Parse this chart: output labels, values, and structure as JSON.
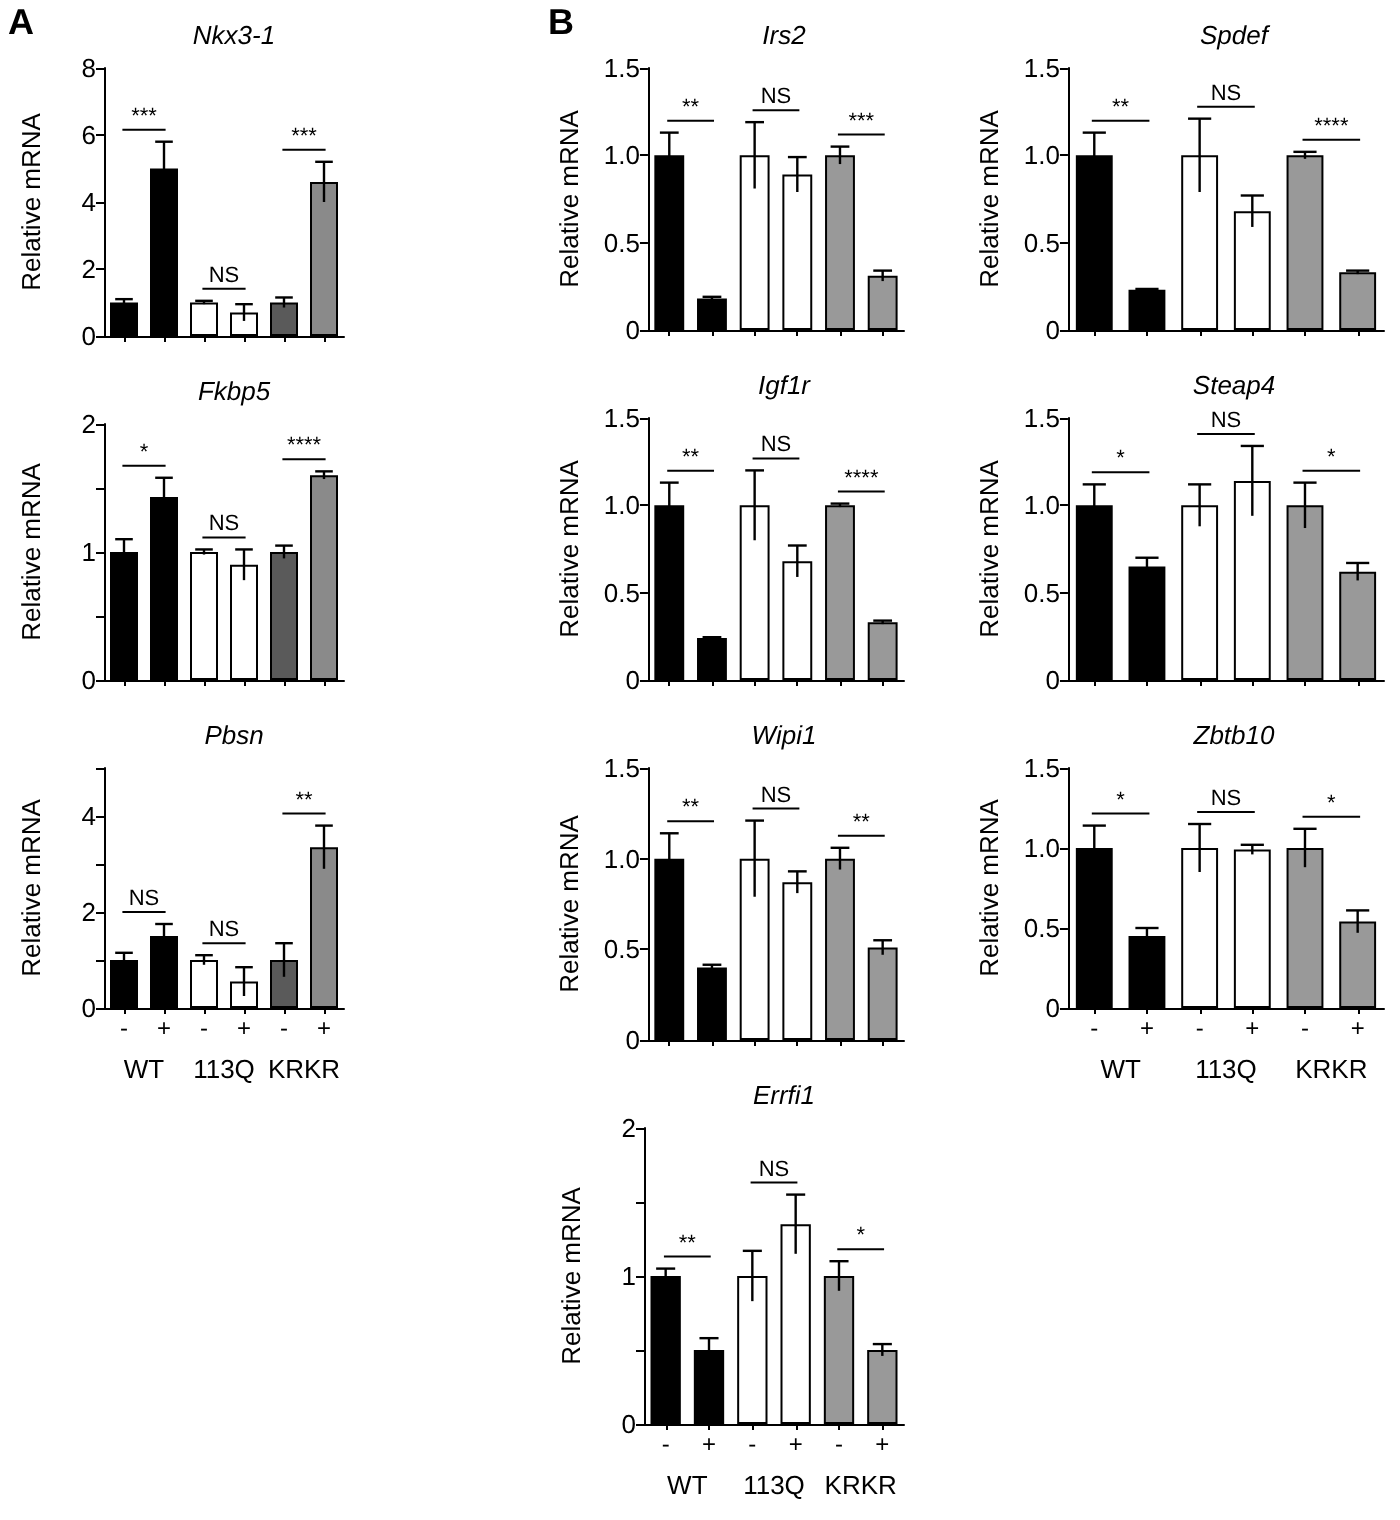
{
  "chart_data": [
    {
      "type": "bar",
      "title": "Nkx3-1",
      "ylabel": "Relative mRNA",
      "categories": [
        null,
        null,
        null
      ],
      "ylim": [
        0,
        8
      ],
      "yticks": [
        0,
        2,
        4,
        6,
        8
      ],
      "tick_labels": "y",
      "legend": false,
      "grid": false,
      "series": [
        {
          "colors": [
            "#000000",
            "#ffffff",
            "#5a5a5a"
          ],
          "values": [
            1.0,
            1.0,
            1.0
          ],
          "errors": [
            0.1,
            0.05,
            0.15
          ]
        },
        {
          "colors": [
            "#000000",
            "#ffffff",
            "#8a8a8a"
          ],
          "values": [
            5.0,
            0.7,
            4.6
          ],
          "errors": [
            0.8,
            0.25,
            0.6
          ]
        }
      ],
      "annotations": [
        "A",
        "***",
        "NS",
        "***"
      ]
    },
    {
      "type": "bar",
      "title": "Fkbp5",
      "ylabel": "Relative mRNA",
      "categories": [
        null,
        null,
        null
      ],
      "ylim": [
        0,
        2
      ],
      "yticks": [
        0,
        {
          "value": 0.5,
          "label": null
        },
        1,
        {
          "value": 1.5,
          "label": null
        },
        2
      ],
      "tick_labels": "y",
      "legend": false,
      "grid": false,
      "series": [
        {
          "colors": [
            "#000000",
            "#ffffff",
            "#5a5a5a"
          ],
          "values": [
            1.0,
            1.0,
            1.0
          ],
          "errors": [
            0.1,
            0.02,
            0.05
          ]
        },
        {
          "colors": [
            "#000000",
            "#ffffff",
            "#8a8a8a"
          ],
          "values": [
            1.43,
            0.9,
            1.6
          ],
          "errors": [
            0.15,
            0.12,
            0.03
          ]
        }
      ],
      "annotations": [
        "*",
        "NS",
        "****"
      ]
    },
    {
      "type": "bar",
      "title": "Pbsn",
      "ylabel": "Relative mRNA",
      "categories": [
        "WT",
        "113Q",
        "KRKR"
      ],
      "ylim": [
        0,
        5
      ],
      "yticks": [
        0,
        {
          "value": 1,
          "label": null
        },
        2,
        {
          "value": 3,
          "label": null
        },
        4,
        {
          "value": 5,
          "label": null
        }
      ],
      "legend": false,
      "grid": false,
      "series": [
        {
          "name": "-",
          "colors": [
            "#000000",
            "#ffffff",
            "#5a5a5a"
          ],
          "values": [
            1.0,
            1.0,
            1.0
          ],
          "errors": [
            0.15,
            0.1,
            0.35
          ]
        },
        {
          "name": "+",
          "colors": [
            "#000000",
            "#ffffff",
            "#8a8a8a"
          ],
          "values": [
            1.5,
            0.55,
            3.35
          ],
          "errors": [
            0.25,
            0.3,
            0.45
          ]
        }
      ],
      "annotations": [
        "NS",
        "NS",
        "**"
      ]
    },
    {
      "type": "bar",
      "title": "Irs2",
      "ylabel": "Relative mRNA",
      "categories": [
        null,
        null,
        null
      ],
      "ylim": [
        0,
        1.5
      ],
      "yticks": [
        0,
        0.5,
        {
          "value": 1,
          "label": "1.0"
        },
        1.5
      ],
      "tick_labels": "y",
      "legend": false,
      "grid": false,
      "series": [
        {
          "colors": [
            "#000000",
            "#ffffff",
            "#999999"
          ],
          "values": [
            1.0,
            1.0,
            1.0
          ],
          "errors": [
            0.13,
            0.19,
            0.05
          ]
        },
        {
          "colors": [
            "#000000",
            "#ffffff",
            "#999999"
          ],
          "values": [
            0.18,
            0.89,
            0.31
          ],
          "errors": [
            0.01,
            0.1,
            0.03
          ]
        }
      ],
      "annotations": [
        "B",
        "**",
        "NS",
        "***"
      ]
    },
    {
      "type": "bar",
      "title": "Spdef",
      "ylabel": "Relative mRNA",
      "categories": [
        null,
        null,
        null
      ],
      "ylim": [
        0,
        1.5
      ],
      "yticks": [
        0,
        0.5,
        {
          "value": 1,
          "label": "1.0"
        },
        1.5
      ],
      "tick_labels": "y",
      "legend": false,
      "grid": false,
      "series": [
        {
          "colors": [
            "#000000",
            "#ffffff",
            "#999999"
          ],
          "values": [
            1.0,
            1.0,
            1.0
          ],
          "errors": [
            0.13,
            0.21,
            0.02
          ]
        },
        {
          "colors": [
            "#000000",
            "#ffffff",
            "#999999"
          ],
          "values": [
            0.23,
            0.68,
            0.33
          ],
          "errors": [
            0.005,
            0.09,
            0.01
          ]
        }
      ],
      "annotations": [
        "**",
        "NS",
        "****"
      ]
    },
    {
      "type": "bar",
      "title": "Igf1r",
      "ylabel": "Relative mRNA",
      "categories": [
        null,
        null,
        null
      ],
      "ylim": [
        0,
        1.5
      ],
      "yticks": [
        0,
        0.5,
        {
          "value": 1,
          "label": "1.0"
        },
        1.5
      ],
      "tick_labels": "y",
      "legend": false,
      "grid": false,
      "series": [
        {
          "colors": [
            "#000000",
            "#ffffff",
            "#999999"
          ],
          "values": [
            1.0,
            1.0,
            1.0
          ],
          "errors": [
            0.13,
            0.2,
            0.01
          ]
        },
        {
          "colors": [
            "#000000",
            "#ffffff",
            "#999999"
          ],
          "values": [
            0.24,
            0.68,
            0.33
          ],
          "errors": [
            0.005,
            0.09,
            0.01
          ]
        }
      ],
      "annotations": [
        "**",
        "NS",
        "****"
      ]
    },
    {
      "type": "bar",
      "title": "Steap4",
      "ylabel": "Relative mRNA",
      "categories": [
        null,
        null,
        null
      ],
      "ylim": [
        0,
        1.5
      ],
      "yticks": [
        0,
        0.5,
        {
          "value": 1,
          "label": "1.0"
        },
        1.5
      ],
      "tick_labels": "y",
      "legend": false,
      "grid": false,
      "series": [
        {
          "colors": [
            "#000000",
            "#ffffff",
            "#999999"
          ],
          "values": [
            1.0,
            1.0,
            1.0
          ],
          "errors": [
            0.12,
            0.12,
            0.13
          ]
        },
        {
          "colors": [
            "#000000",
            "#ffffff",
            "#999999"
          ],
          "values": [
            0.65,
            1.14,
            0.62
          ],
          "errors": [
            0.05,
            0.2,
            0.05
          ]
        }
      ],
      "annotations": [
        "*",
        "NS",
        "*"
      ]
    },
    {
      "type": "bar",
      "title": "Wipi1",
      "ylabel": "Relative mRNA",
      "categories": [
        null,
        null,
        null
      ],
      "ylim": [
        0,
        1.5
      ],
      "yticks": [
        0,
        0.5,
        {
          "value": 1,
          "label": "1.0"
        },
        1.5
      ],
      "tick_labels": "y",
      "legend": false,
      "grid": false,
      "series": [
        {
          "colors": [
            "#000000",
            "#ffffff",
            "#999999"
          ],
          "values": [
            1.0,
            1.0,
            1.0
          ],
          "errors": [
            0.14,
            0.21,
            0.06
          ]
        },
        {
          "colors": [
            "#000000",
            "#ffffff",
            "#999999"
          ],
          "values": [
            0.4,
            0.87,
            0.51
          ],
          "errors": [
            0.015,
            0.06,
            0.04
          ]
        }
      ],
      "annotations": [
        "**",
        "NS",
        "**"
      ]
    },
    {
      "type": "bar",
      "title": "Zbtb10",
      "ylabel": "Relative mRNA",
      "categories": [
        "WT",
        "113Q",
        "KRKR"
      ],
      "ylim": [
        0,
        1.5
      ],
      "yticks": [
        0,
        0.5,
        {
          "value": 1,
          "label": "1.0"
        },
        1.5
      ],
      "legend": false,
      "grid": false,
      "series": [
        {
          "name": "-",
          "colors": [
            "#000000",
            "#ffffff",
            "#999999"
          ],
          "values": [
            1.0,
            1.0,
            1.0
          ],
          "errors": [
            0.14,
            0.15,
            0.12
          ]
        },
        {
          "name": "+",
          "colors": [
            "#000000",
            "#ffffff",
            "#999999"
          ],
          "values": [
            0.45,
            0.99,
            0.54
          ],
          "errors": [
            0.05,
            0.03,
            0.07
          ]
        }
      ],
      "annotations": [
        "*",
        "NS",
        "*"
      ]
    },
    {
      "type": "bar",
      "title": "Errfi1",
      "ylabel": "Relative mRNA",
      "categories": [
        "WT",
        "113Q",
        "KRKR"
      ],
      "ylim": [
        0,
        2
      ],
      "yticks": [
        0,
        {
          "value": 0.5,
          "label": null
        },
        1,
        {
          "value": 1.5,
          "label": null
        },
        2
      ],
      "legend": false,
      "grid": false,
      "series": [
        {
          "name": "-",
          "colors": [
            "#000000",
            "#ffffff",
            "#999999"
          ],
          "values": [
            1.0,
            1.0,
            1.0
          ],
          "errors": [
            0.05,
            0.17,
            0.1
          ]
        },
        {
          "name": "+",
          "colors": [
            "#000000",
            "#ffffff",
            "#999999"
          ],
          "values": [
            0.5,
            1.35,
            0.5
          ],
          "errors": [
            0.08,
            0.2,
            0.04
          ]
        }
      ],
      "annotations": [
        "**",
        "NS",
        "*"
      ]
    }
  ]
}
